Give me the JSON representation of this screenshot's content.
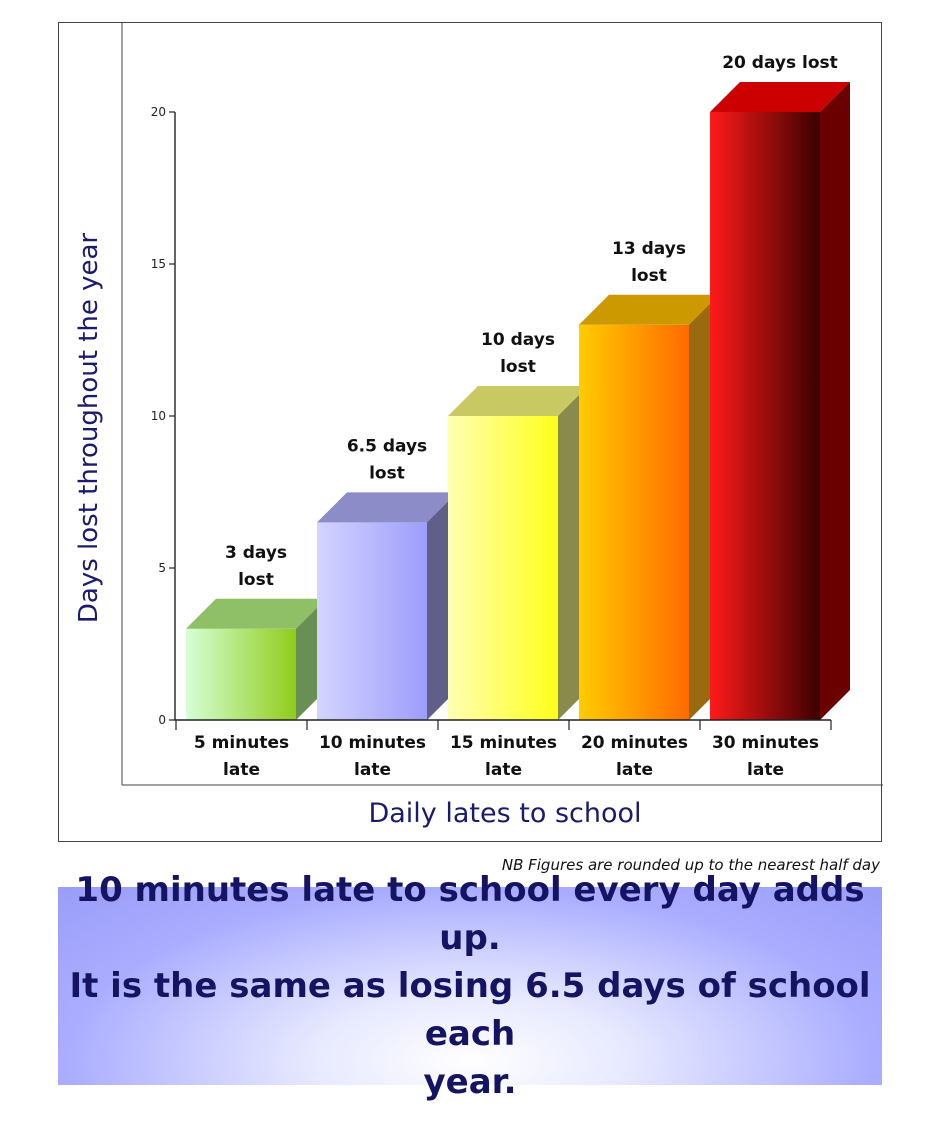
{
  "chart_data": {
    "type": "bar",
    "categories": [
      "5 minutes late",
      "10 minutes late",
      "15 minutes late",
      "20 minutes late",
      "30 minutes late"
    ],
    "category_lines": [
      [
        "5 minutes",
        "late"
      ],
      [
        "10 minutes",
        "late"
      ],
      [
        "15 minutes",
        "late"
      ],
      [
        "20 minutes",
        "late"
      ],
      [
        "30 minutes",
        "late"
      ]
    ],
    "values": [
      3,
      6.5,
      10,
      13,
      20
    ],
    "data_labels": [
      [
        "3 days",
        "lost"
      ],
      [
        "6.5 days",
        "lost"
      ],
      [
        "10 days",
        "lost"
      ],
      [
        "13 days",
        "lost"
      ],
      [
        "20 days lost"
      ]
    ],
    "bar_colors": [
      {
        "light": "#d6ffd6",
        "dark": "#8fcc1a",
        "top": "#8fbf66",
        "side": "#6a8f54"
      },
      {
        "light": "#d4d4ff",
        "dark": "#9d9dfc",
        "top": "#8c8cc8",
        "side": "#5f5f8a"
      },
      {
        "light": "#ffffb3",
        "dark": "#ffff1a",
        "top": "#c9c964",
        "side": "#8a8a4c"
      },
      {
        "light": "#ffcc00",
        "dark": "#ff6a00",
        "top": "#cc9a00",
        "side": "#9a6a0f"
      },
      {
        "light": "#ff1a1a",
        "dark": "#3a0000",
        "top": "#cc0000",
        "side": "#6a0000"
      }
    ],
    "xlabel": "Daily lates to school",
    "ylabel": "Days lost throughout the year",
    "ylim": [
      0,
      20
    ],
    "yticks": [
      0,
      5,
      10,
      15,
      20
    ],
    "grid": false,
    "legend": "none"
  },
  "footnote": "NB Figures are rounded up to the nearest half day",
  "message": {
    "line1": "10 minutes late to school every day adds up.",
    "line2": "It is the same as losing 6.5 days of school each",
    "line3": "year."
  }
}
